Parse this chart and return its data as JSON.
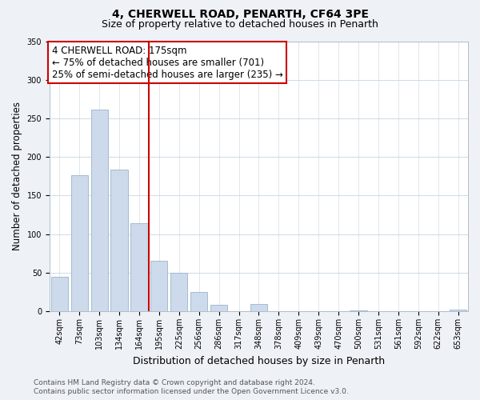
{
  "title": "4, CHERWELL ROAD, PENARTH, CF64 3PE",
  "subtitle": "Size of property relative to detached houses in Penarth",
  "xlabel": "Distribution of detached houses by size in Penarth",
  "ylabel": "Number of detached properties",
  "bar_labels": [
    "42sqm",
    "73sqm",
    "103sqm",
    "134sqm",
    "164sqm",
    "195sqm",
    "225sqm",
    "256sqm",
    "286sqm",
    "317sqm",
    "348sqm",
    "378sqm",
    "409sqm",
    "439sqm",
    "470sqm",
    "500sqm",
    "531sqm",
    "561sqm",
    "592sqm",
    "622sqm",
    "653sqm"
  ],
  "bar_values": [
    45,
    176,
    261,
    184,
    114,
    65,
    50,
    25,
    8,
    0,
    9,
    0,
    0,
    0,
    0,
    1,
    0,
    0,
    0,
    0,
    2
  ],
  "bar_color": "#ccdaeb",
  "bar_edge_color": "#9ab3cc",
  "highlight_line_color": "#cc0000",
  "annotation_title": "4 CHERWELL ROAD: 175sqm",
  "annotation_line1": "← 75% of detached houses are smaller (701)",
  "annotation_line2": "25% of semi-detached houses are larger (235) →",
  "annotation_box_color": "#ffffff",
  "annotation_box_edge": "#cc0000",
  "ylim": [
    0,
    350
  ],
  "yticks": [
    0,
    50,
    100,
    150,
    200,
    250,
    300,
    350
  ],
  "footer_line1": "Contains HM Land Registry data © Crown copyright and database right 2024.",
  "footer_line2": "Contains public sector information licensed under the Open Government Licence v3.0.",
  "bg_color": "#eef2f7",
  "plot_bg_color": "#ffffff",
  "title_fontsize": 10,
  "subtitle_fontsize": 9,
  "axis_label_fontsize": 8.5,
  "tick_fontsize": 7,
  "footer_fontsize": 6.5,
  "annotation_fontsize": 8.5
}
